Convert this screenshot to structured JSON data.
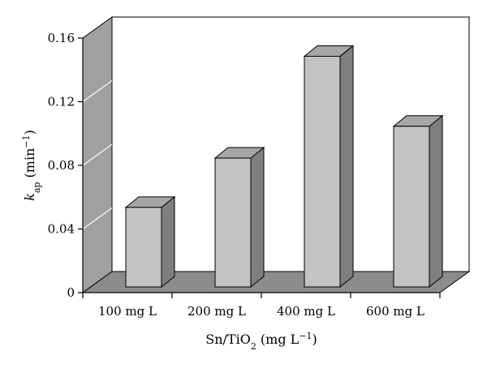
{
  "chart_data": {
    "type": "bar",
    "categories": [
      "100 mg L",
      "200 mg L",
      "400 mg L",
      "600 mg L"
    ],
    "values": [
      0.05,
      0.081,
      0.145,
      0.101
    ],
    "xlabel": {
      "prefix": "Sn/TiO",
      "sub": "2",
      "middle": " (mg L",
      "sup": "−1",
      "suffix": ")"
    },
    "ylabel": {
      "main": "k",
      "sub": "ap",
      "middle": "  (min",
      "sup": "−1",
      "suffix": ")"
    },
    "ylim": [
      0,
      0.16
    ],
    "yticks": [
      0,
      0.04,
      0.08,
      0.12,
      0.16
    ],
    "ytick_labels": [
      "0",
      "0.04",
      "0.08",
      "0.12",
      "0.16"
    ],
    "grid": true,
    "three_d": true,
    "colors": {
      "bar_front": "#c3c3c3",
      "bar_side": "#7f7f7f",
      "bar_top": "#a6a6a6",
      "wall": "#a0a0a0",
      "floor": "#8c8c8c",
      "grid": "#ffffff",
      "axis": "#000000"
    }
  }
}
